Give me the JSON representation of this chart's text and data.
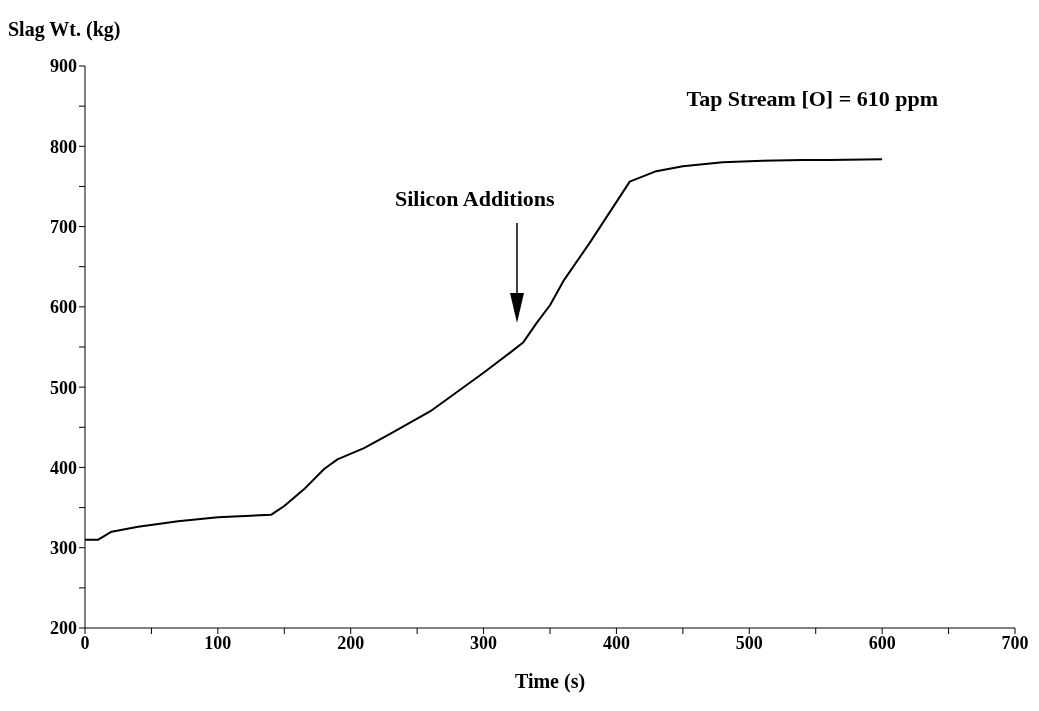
{
  "chart_data": {
    "type": "line",
    "xlabel": "Time (s)",
    "ylabel": "Slag Wt. (kg)",
    "x": [
      0,
      10,
      20,
      40,
      70,
      100,
      140,
      150,
      165,
      180,
      190,
      210,
      230,
      260,
      280,
      300,
      320,
      330,
      340,
      350,
      360,
      380,
      410,
      430,
      450,
      480,
      510,
      540,
      560,
      600
    ],
    "series": [
      {
        "color": "#000000",
        "values": [
          310,
          310,
          320,
          326,
          333,
          338,
          341,
          352,
          373,
          398,
          410,
          424,
          442,
          470,
          494,
          518,
          543,
          556,
          580,
          602,
          632,
          680,
          756,
          769,
          775,
          780,
          782,
          783,
          783,
          784
        ]
      }
    ],
    "xlim": [
      0,
      700
    ],
    "ylim": [
      200,
      900
    ],
    "xticks": [
      0,
      {
        "value": 50,
        "label": null
      },
      100,
      {
        "value": 150,
        "label": null
      },
      200,
      {
        "value": 250,
        "label": null
      },
      300,
      {
        "value": 350,
        "label": null
      },
      400,
      {
        "value": 450,
        "label": null
      },
      500,
      {
        "value": 550,
        "label": null
      },
      600,
      {
        "value": 650,
        "label": null
      },
      700
    ],
    "yticks": [
      200,
      {
        "value": 250,
        "label": null
      },
      300,
      {
        "value": 350,
        "label": null
      },
      400,
      {
        "value": 450,
        "label": null
      },
      500,
      {
        "value": 550,
        "label": null
      },
      600,
      {
        "value": 650,
        "label": null
      },
      700,
      {
        "value": 750,
        "label": null
      },
      800,
      {
        "value": 850,
        "label": null
      },
      900
    ],
    "annotations": [
      "Tap Stream [O] = 610 ppm",
      "Silicon Additions"
    ],
    "marker": "none",
    "line_style": "solid"
  }
}
